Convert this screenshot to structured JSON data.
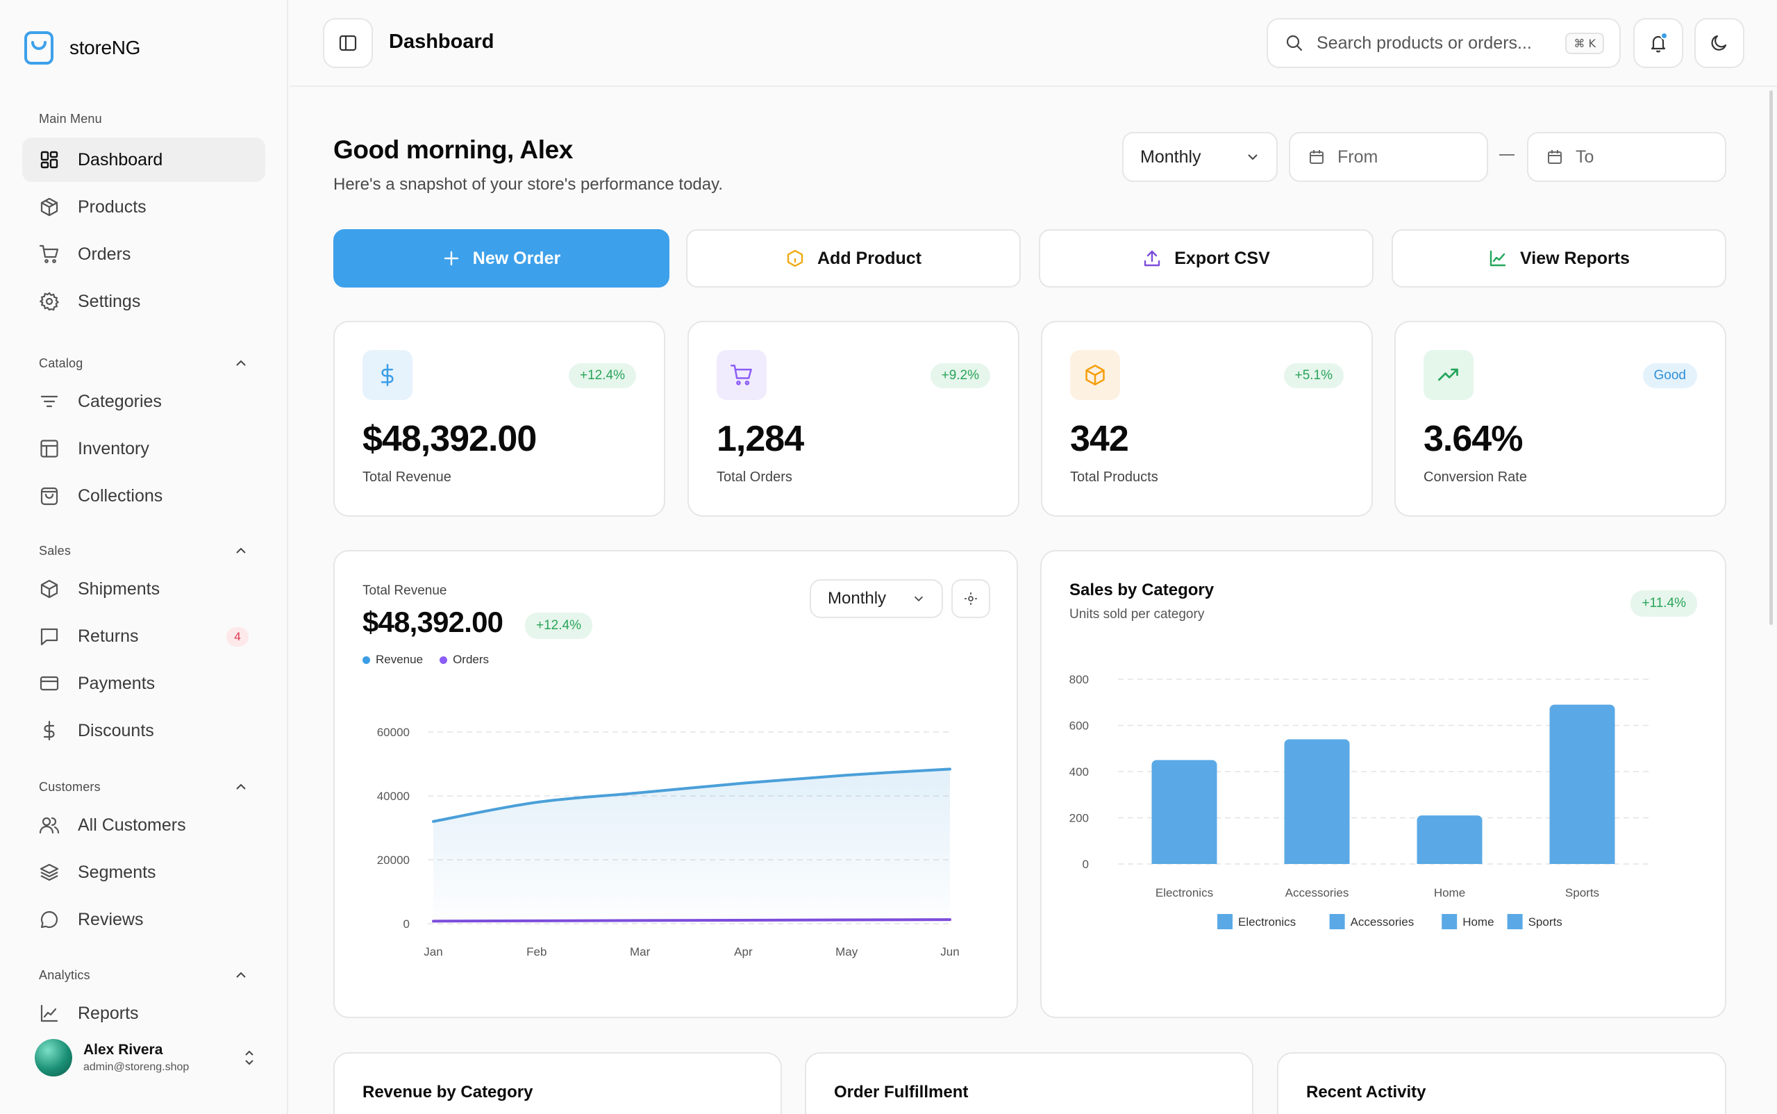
{
  "brand": {
    "name": "storeNG"
  },
  "sidebar": {
    "main_label": "Main Menu",
    "main_items": [
      {
        "label": "Dashboard",
        "icon": "dashboard-icon"
      },
      {
        "label": "Products",
        "icon": "package-icon"
      },
      {
        "label": "Orders",
        "icon": "cart-icon"
      },
      {
        "label": "Settings",
        "icon": "gear-icon"
      }
    ],
    "catalog_label": "Catalog",
    "catalog_items": [
      {
        "label": "Categories",
        "icon": "filter-lines-icon"
      },
      {
        "label": "Inventory",
        "icon": "table-icon"
      },
      {
        "label": "Collections",
        "icon": "shopping-bag-icon"
      }
    ],
    "sales_label": "Sales",
    "sales_items": [
      {
        "label": "Shipments",
        "icon": "box-icon"
      },
      {
        "label": "Returns",
        "icon": "message-icon",
        "badge": "4"
      },
      {
        "label": "Payments",
        "icon": "credit-card-icon"
      },
      {
        "label": "Discounts",
        "icon": "dollar-icon"
      }
    ],
    "customers_label": "Customers",
    "customers_items": [
      {
        "label": "All Customers",
        "icon": "users-icon"
      },
      {
        "label": "Segments",
        "icon": "layers-icon"
      },
      {
        "label": "Reviews",
        "icon": "chat-bubble-icon"
      }
    ],
    "analytics_label": "Analytics",
    "analytics_items": [
      {
        "label": "Reports",
        "icon": "line-chart-icon"
      }
    ]
  },
  "user": {
    "name": "Alex Rivera",
    "email": "admin@storeng.shop"
  },
  "header": {
    "title": "Dashboard",
    "search_placeholder": "Search products or orders...",
    "shortcut": "⌘ K"
  },
  "greeting": {
    "title": "Good morning, Alex",
    "subtitle": "Here's a snapshot of your store's performance today."
  },
  "filters": {
    "period": "Monthly",
    "from": "From",
    "to": "To"
  },
  "actions": {
    "new_order": "New Order",
    "add_product": "Add Product",
    "export_csv": "Export CSV",
    "view_reports": "View Reports"
  },
  "stats": [
    {
      "value": "$48,392.00",
      "label": "Total Revenue",
      "change": "+12.4%",
      "icon": "dollar-icon",
      "color": "#3b9ee6"
    },
    {
      "value": "1,284",
      "label": "Total Orders",
      "change": "+9.2%",
      "icon": "cart-icon",
      "color": "#8b5cf6"
    },
    {
      "value": "342",
      "label": "Total Products",
      "change": "+5.1%",
      "icon": "package-icon",
      "color": "#f59e0b"
    },
    {
      "value": "3.64%",
      "label": "Conversion Rate",
      "change": "Good",
      "icon": "trending-up-icon",
      "color": "#22c55e"
    }
  ],
  "revenue_card": {
    "label": "Total Revenue",
    "value": "$48,392.00",
    "change": "+12.4%",
    "period": "Monthly",
    "legend_revenue": "Revenue",
    "legend_orders": "Orders"
  },
  "category_card": {
    "title": "Sales by Category",
    "subtitle": "Units sold per category",
    "change": "+11.4%"
  },
  "bottom_cards": {
    "revenue_by_category": "Revenue by Category",
    "order_fulfillment": "Order Fulfillment",
    "recent_activity": "Recent Activity"
  },
  "colors": {
    "accent": "#3da0ea",
    "revenue_line": "#4a9fd9",
    "orders_line": "#7c4ddb",
    "bar": "#5aa9e6"
  },
  "chart_data": [
    {
      "type": "area",
      "x": [
        "Jan",
        "Feb",
        "Mar",
        "Apr",
        "May",
        "Jun"
      ],
      "series": [
        {
          "name": "Revenue",
          "values": [
            32000,
            38000,
            41000,
            44000,
            46500,
            48400
          ]
        },
        {
          "name": "Orders",
          "values": [
            800,
            900,
            1000,
            1100,
            1200,
            1284
          ]
        }
      ],
      "yticks": [
        0,
        20000,
        40000,
        60000
      ],
      "ylim": [
        0,
        60000
      ],
      "grid": true,
      "legend": "top-left"
    },
    {
      "type": "bar",
      "categories": [
        "Electronics",
        "Accessories",
        "Home",
        "Sports"
      ],
      "values": [
        450,
        540,
        210,
        690
      ],
      "yticks": [
        0,
        200,
        400,
        600,
        800
      ],
      "ylim": [
        0,
        800
      ],
      "grid": true,
      "legend": "bottom"
    }
  ]
}
